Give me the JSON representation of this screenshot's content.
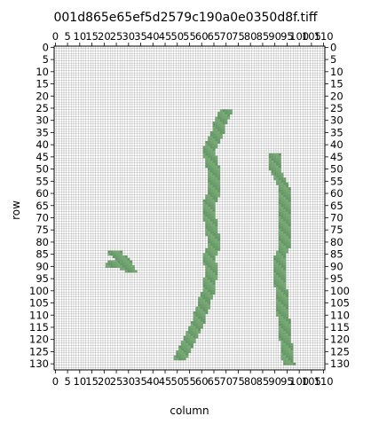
{
  "chart_data": {
    "type": "heatmap",
    "title": "001d865e65ef5d2579c190a0e0350d8f.tiff",
    "xlabel": "column",
    "ylabel": "row",
    "xlim": [
      0,
      111
    ],
    "ylim": [
      0,
      133
    ],
    "grid": true,
    "x_ticks": [
      "0",
      "5",
      "10",
      "15",
      "20",
      "25",
      "30",
      "35",
      "40",
      "45",
      "50",
      "55",
      "60",
      "65",
      "70",
      "75",
      "80",
      "85",
      "90",
      "95",
      "100",
      "105",
      "110"
    ],
    "y_ticks": [
      "0",
      "5",
      "10",
      "15",
      "20",
      "25",
      "30",
      "35",
      "40",
      "45",
      "50",
      "55",
      "60",
      "65",
      "70",
      "75",
      "80",
      "85",
      "90",
      "95",
      "100",
      "105",
      "110",
      "115",
      "120",
      "125",
      "130"
    ],
    "mask_color": "#6aa86a",
    "grid_color": "#8c8c8c",
    "regions": [
      {
        "name": "left-blob",
        "cells": [
          [
            84,
            22,
            27
          ],
          [
            85,
            22,
            27
          ],
          [
            86,
            24,
            29
          ],
          [
            87,
            25,
            30
          ],
          [
            88,
            22,
            31
          ],
          [
            89,
            21,
            31
          ],
          [
            90,
            21,
            32
          ],
          [
            91,
            27,
            32
          ],
          [
            92,
            29,
            33
          ]
        ]
      },
      {
        "name": "center-strand",
        "path": [
          [
            26,
            70
          ],
          [
            28,
            69
          ],
          [
            30,
            68
          ],
          [
            32,
            67
          ],
          [
            34,
            67
          ],
          [
            36,
            66
          ],
          [
            38,
            65
          ],
          [
            40,
            64
          ],
          [
            42,
            63
          ],
          [
            44,
            63
          ],
          [
            46,
            64
          ],
          [
            48,
            64
          ],
          [
            50,
            65
          ],
          [
            52,
            65
          ],
          [
            54,
            65
          ],
          [
            56,
            65
          ],
          [
            58,
            65
          ],
          [
            60,
            65
          ],
          [
            62,
            64
          ],
          [
            64,
            63
          ],
          [
            66,
            63
          ],
          [
            68,
            63
          ],
          [
            70,
            63
          ],
          [
            72,
            64
          ],
          [
            74,
            64
          ],
          [
            76,
            64
          ],
          [
            78,
            65
          ],
          [
            80,
            65
          ],
          [
            82,
            65
          ],
          [
            84,
            64
          ],
          [
            86,
            63
          ],
          [
            88,
            63
          ],
          [
            90,
            64
          ],
          [
            92,
            64
          ],
          [
            94,
            64
          ],
          [
            96,
            63
          ],
          [
            98,
            63
          ],
          [
            100,
            63
          ],
          [
            102,
            62
          ],
          [
            104,
            61
          ],
          [
            106,
            61
          ],
          [
            108,
            60
          ],
          [
            110,
            59
          ],
          [
            112,
            59
          ],
          [
            114,
            58
          ],
          [
            116,
            57
          ],
          [
            118,
            56
          ],
          [
            120,
            55
          ],
          [
            122,
            54
          ],
          [
            124,
            53
          ],
          [
            126,
            52
          ],
          [
            128,
            51
          ]
        ],
        "width": 2.5
      },
      {
        "name": "right-strand",
        "path": [
          [
            44,
            90
          ],
          [
            46,
            90
          ],
          [
            48,
            90
          ],
          [
            50,
            90
          ],
          [
            52,
            91
          ],
          [
            54,
            92
          ],
          [
            56,
            93
          ],
          [
            58,
            94
          ],
          [
            60,
            94
          ],
          [
            62,
            94
          ],
          [
            64,
            94
          ],
          [
            66,
            94
          ],
          [
            68,
            94
          ],
          [
            70,
            94
          ],
          [
            72,
            94
          ],
          [
            74,
            94
          ],
          [
            76,
            94
          ],
          [
            78,
            94
          ],
          [
            80,
            94
          ],
          [
            82,
            94
          ],
          [
            84,
            93
          ],
          [
            86,
            92
          ],
          [
            88,
            92
          ],
          [
            90,
            92
          ],
          [
            92,
            92
          ],
          [
            94,
            92
          ],
          [
            96,
            92
          ],
          [
            98,
            92
          ],
          [
            100,
            93
          ],
          [
            102,
            93
          ],
          [
            104,
            93
          ],
          [
            106,
            93
          ],
          [
            108,
            93
          ],
          [
            110,
            93
          ],
          [
            112,
            94
          ],
          [
            114,
            94
          ],
          [
            116,
            94
          ],
          [
            118,
            94
          ],
          [
            120,
            94
          ],
          [
            122,
            95
          ],
          [
            124,
            95
          ],
          [
            126,
            95
          ],
          [
            128,
            95
          ],
          [
            130,
            96
          ]
        ],
        "width": 2.2
      }
    ]
  }
}
